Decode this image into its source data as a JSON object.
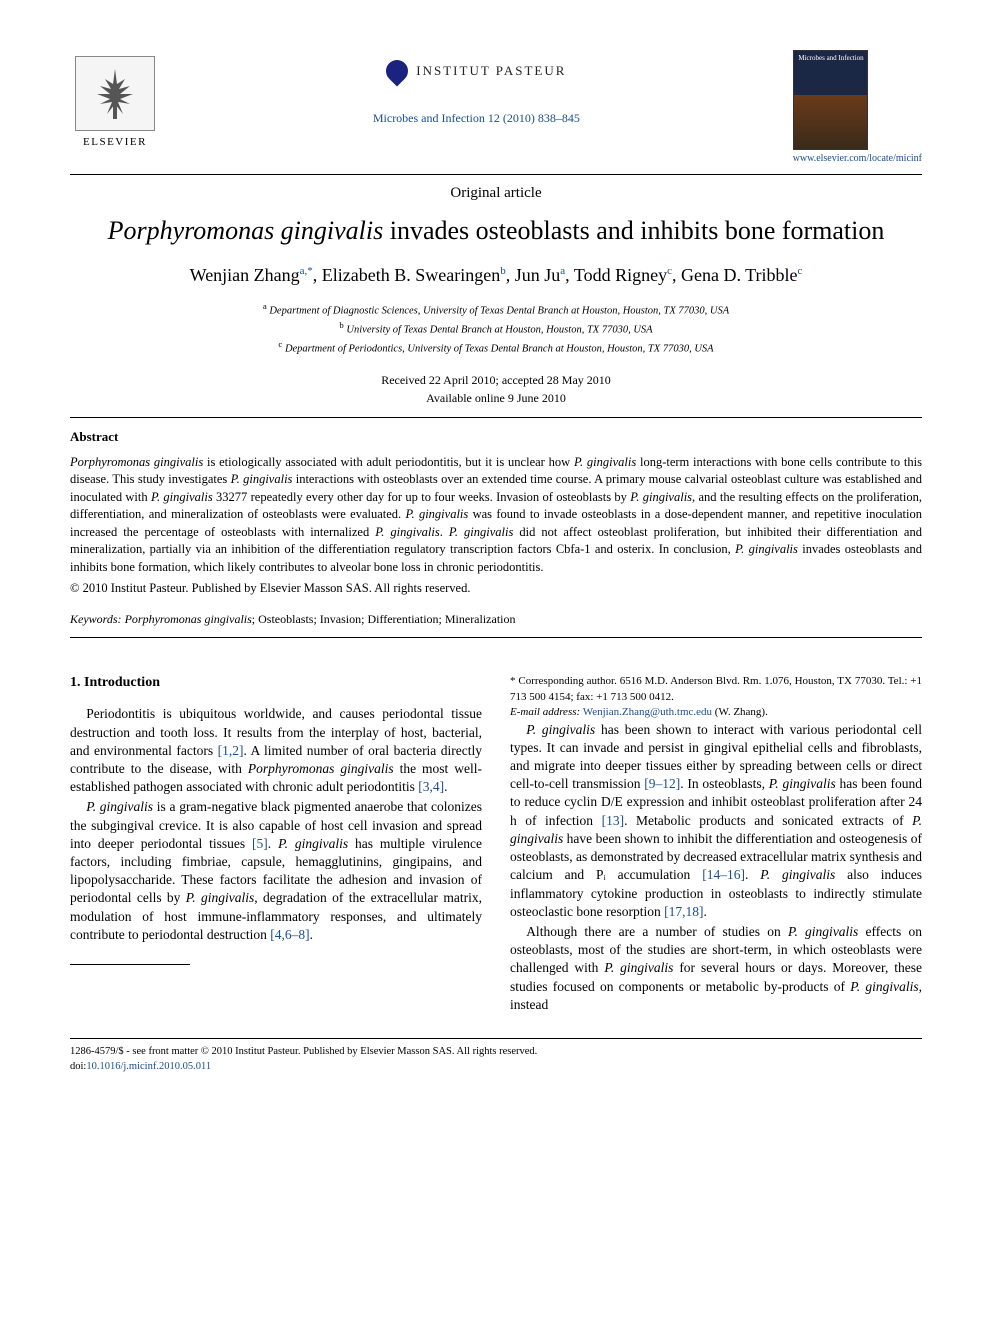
{
  "header": {
    "publisher_name": "ELSEVIER",
    "institute_name": "INSTITUT PASTEUR",
    "journal_reference": "Microbes and Infection 12 (2010) 838–845",
    "journal_cover_title": "Microbes and Infection",
    "journal_url": "www.elsevier.com/locate/micinf"
  },
  "article": {
    "type": "Original article",
    "title_italic": "Porphyromonas gingivalis",
    "title_rest": " invades osteoblasts and inhibits bone formation",
    "authors": [
      {
        "name": "Wenjian Zhang",
        "sup": "a,*"
      },
      {
        "name": "Elizabeth B. Swearingen",
        "sup": "b"
      },
      {
        "name": "Jun Ju",
        "sup": "a"
      },
      {
        "name": "Todd Rigney",
        "sup": "c"
      },
      {
        "name": "Gena D. Tribble",
        "sup": "c"
      }
    ],
    "affiliations": [
      {
        "sup": "a",
        "text": "Department of Diagnostic Sciences, University of Texas Dental Branch at Houston, Houston, TX 77030, USA"
      },
      {
        "sup": "b",
        "text": "University of Texas Dental Branch at Houston, Houston, TX 77030, USA"
      },
      {
        "sup": "c",
        "text": "Department of Periodontics, University of Texas Dental Branch at Houston, Houston, TX 77030, USA"
      }
    ],
    "received": "Received 22 April 2010; accepted 28 May 2010",
    "available": "Available online 9 June 2010"
  },
  "abstract": {
    "label": "Abstract",
    "text_parts": [
      {
        "italic": true,
        "t": "Porphyromonas gingivalis"
      },
      {
        "italic": false,
        "t": " is etiologically associated with adult periodontitis, but it is unclear how "
      },
      {
        "italic": true,
        "t": "P. gingivalis"
      },
      {
        "italic": false,
        "t": " long-term interactions with bone cells contribute to this disease. This study investigates "
      },
      {
        "italic": true,
        "t": "P. gingivalis"
      },
      {
        "italic": false,
        "t": " interactions with osteoblasts over an extended time course. A primary mouse calvarial osteoblast culture was established and inoculated with "
      },
      {
        "italic": true,
        "t": "P. gingivalis"
      },
      {
        "italic": false,
        "t": " 33277 repeatedly every other day for up to four weeks. Invasion of osteoblasts by "
      },
      {
        "italic": true,
        "t": "P. gingivalis"
      },
      {
        "italic": false,
        "t": ", and the resulting effects on the proliferation, differentiation, and mineralization of osteoblasts were evaluated. "
      },
      {
        "italic": true,
        "t": "P. gingivalis"
      },
      {
        "italic": false,
        "t": " was found to invade osteoblasts in a dose-dependent manner, and repetitive inoculation increased the percentage of osteoblasts with internalized "
      },
      {
        "italic": true,
        "t": "P. gingivalis"
      },
      {
        "italic": false,
        "t": ". "
      },
      {
        "italic": true,
        "t": "P. gingivalis"
      },
      {
        "italic": false,
        "t": " did not affect osteoblast proliferation, but inhibited their differentiation and mineralization, partially via an inhibition of the differentiation regulatory transcription factors Cbfa-1 and osterix. In conclusion, "
      },
      {
        "italic": true,
        "t": "P. gingivalis"
      },
      {
        "italic": false,
        "t": " invades osteoblasts and inhibits bone formation, which likely contributes to alveolar bone loss in chronic periodontitis."
      }
    ],
    "copyright": "© 2010 Institut Pasteur. Published by Elsevier Masson SAS. All rights reserved."
  },
  "keywords": {
    "label": "Keywords:",
    "items": "Porphyromonas gingivalis; Osteoblasts; Invasion; Differentiation; Mineralization",
    "italic_term": "Porphyromonas gingivalis"
  },
  "body": {
    "section_heading": "1. Introduction",
    "p1": "Periodontitis is ubiquitous worldwide, and causes periodontal tissue destruction and tooth loss. It results from the interplay of host, bacterial, and environmental factors ",
    "p1_ref1": "[1,2]",
    "p1b": ". A limited number of oral bacteria directly contribute to the disease, with ",
    "p1_it1": "Porphyromonas gingivalis",
    "p1c": " the most well-established pathogen associated with chronic adult periodontitis ",
    "p1_ref2": "[3,4]",
    "p1d": ".",
    "p2_it1": "P. gingivalis",
    "p2a": " is a gram-negative black pigmented anaerobe that colonizes the subgingival crevice. It is also capable of host cell invasion and spread into deeper periodontal tissues ",
    "p2_ref1": "[5]",
    "p2b": ". ",
    "p2_it2": "P. gingivalis",
    "p2c": " has multiple virulence factors, including fimbriae, capsule, hemagglutinins, gingipains, and lipopolysaccharide. These factors facilitate the adhesion and invasion of periodontal cells by ",
    "p2_it3": "P. gingivalis",
    "p2d": ", degradation of the extracellular matrix, modulation of host immune-inflammatory responses, and ultimately contribute to periodontal destruction ",
    "p2_ref2": "[4,6–8]",
    "p2e": ".",
    "p3_it1": "P. gingivalis",
    "p3a": " has been shown to interact with various periodontal cell types. It can invade and persist in gingival epithelial cells and fibroblasts, and migrate into deeper tissues either by spreading between cells or direct cell-to-cell transmission ",
    "p3_ref1": "[9–12]",
    "p3b": ". In osteoblasts, ",
    "p3_it2": "P. gingivalis",
    "p3c": " has been found to reduce cyclin D/E expression and inhibit osteoblast proliferation after 24 h of infection ",
    "p3_ref2": "[13]",
    "p3d": ". Metabolic products and sonicated extracts of ",
    "p3_it3": "P. gingivalis",
    "p3e": " have been shown to inhibit the differentiation and osteogenesis of osteoblasts, as demonstrated by decreased extracellular matrix synthesis and calcium and Pᵢ accumulation ",
    "p3_ref3": "[14–16]",
    "p3f": ". ",
    "p3_it4": "P. gingivalis",
    "p3g": " also induces inflammatory cytokine production in osteoblasts to indirectly stimulate osteoclastic bone resorption ",
    "p3_ref4": "[17,18]",
    "p3h": ".",
    "p4a": "Although there are a number of studies on ",
    "p4_it1": "P. gingivalis",
    "p4b": " effects on osteoblasts, most of the studies are short-term, in which osteoblasts were challenged with ",
    "p4_it2": "P. gingivalis",
    "p4c": " for several hours or days. Moreover, these studies focused on components or metabolic by-products of ",
    "p4_it3": "P. gingivalis",
    "p4d": ", instead"
  },
  "footnote": {
    "corr": "* Corresponding author. 6516 M.D. Anderson Blvd. Rm. 1.076, Houston, TX 77030. Tel.: +1 713 500 4154; fax: +1 713 500 0412.",
    "email_label": "E-mail address:",
    "email": "Wenjian.Zhang@uth.tmc.edu",
    "email_person": " (W. Zhang)."
  },
  "footer": {
    "line1": "1286-4579/$ - see front matter © 2010 Institut Pasteur. Published by Elsevier Masson SAS. All rights reserved.",
    "doi_label": "doi:",
    "doi": "10.1016/j.micinf.2010.05.011"
  },
  "colors": {
    "link": "#1a4d8f",
    "text": "#000000",
    "background": "#ffffff"
  },
  "typography": {
    "body_font": "Times New Roman",
    "title_fontsize_pt": 20,
    "authors_fontsize_pt": 14,
    "body_fontsize_pt": 10.5,
    "abstract_fontsize_pt": 9.5
  }
}
